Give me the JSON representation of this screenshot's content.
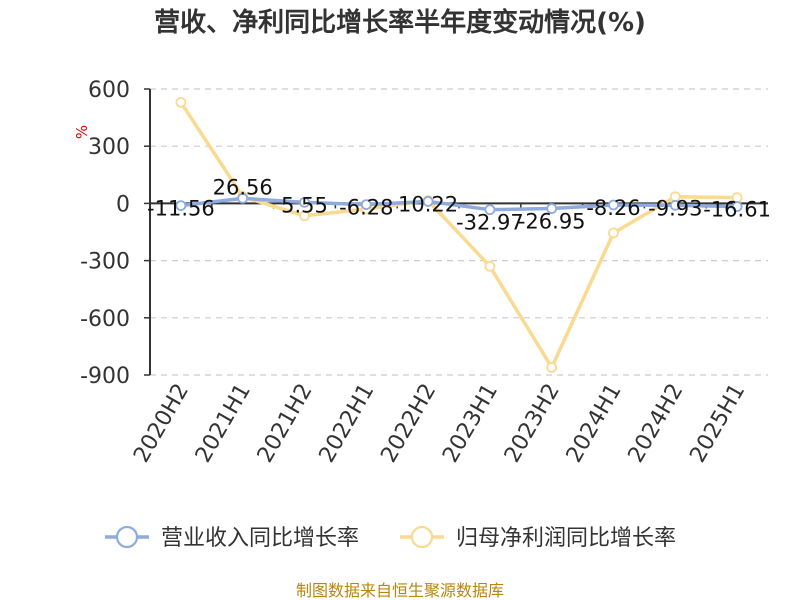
{
  "chart_data": {
    "type": "line",
    "title": "营收、净利同比增长率半年度变动情况(%)",
    "unit": "%",
    "categories": [
      "2020H2",
      "2021H1",
      "2021H2",
      "2022H1",
      "2022H2",
      "2023H1",
      "2023H2",
      "2024H1",
      "2024H2",
      "2025H1"
    ],
    "ylim": [
      -900,
      600
    ],
    "yticks": [
      600,
      300,
      0,
      -300,
      -600,
      -900
    ],
    "grid": true,
    "legend_position": "bottom",
    "series": [
      {
        "name": "营业收入同比增长率",
        "color": "#8faadc",
        "values": [
          -11.56,
          26.56,
          5.55,
          -6.28,
          10.22,
          -32.97,
          -26.95,
          -8.26,
          -9.93,
          -16.61
        ],
        "labels": [
          "-11.56",
          "26.56",
          "5.55",
          "-6.28",
          "10.22",
          "-32.97",
          "-26.95",
          "-8.26",
          "-9.93",
          "-16.61"
        ]
      },
      {
        "name": "归母净利润同比增长率",
        "color": "#fad990",
        "values": [
          530,
          35,
          -65,
          -30,
          15,
          -330,
          -860,
          -155,
          35,
          30
        ]
      }
    ]
  },
  "footer": {
    "source": "制图数据来自恒生聚源数据库"
  }
}
